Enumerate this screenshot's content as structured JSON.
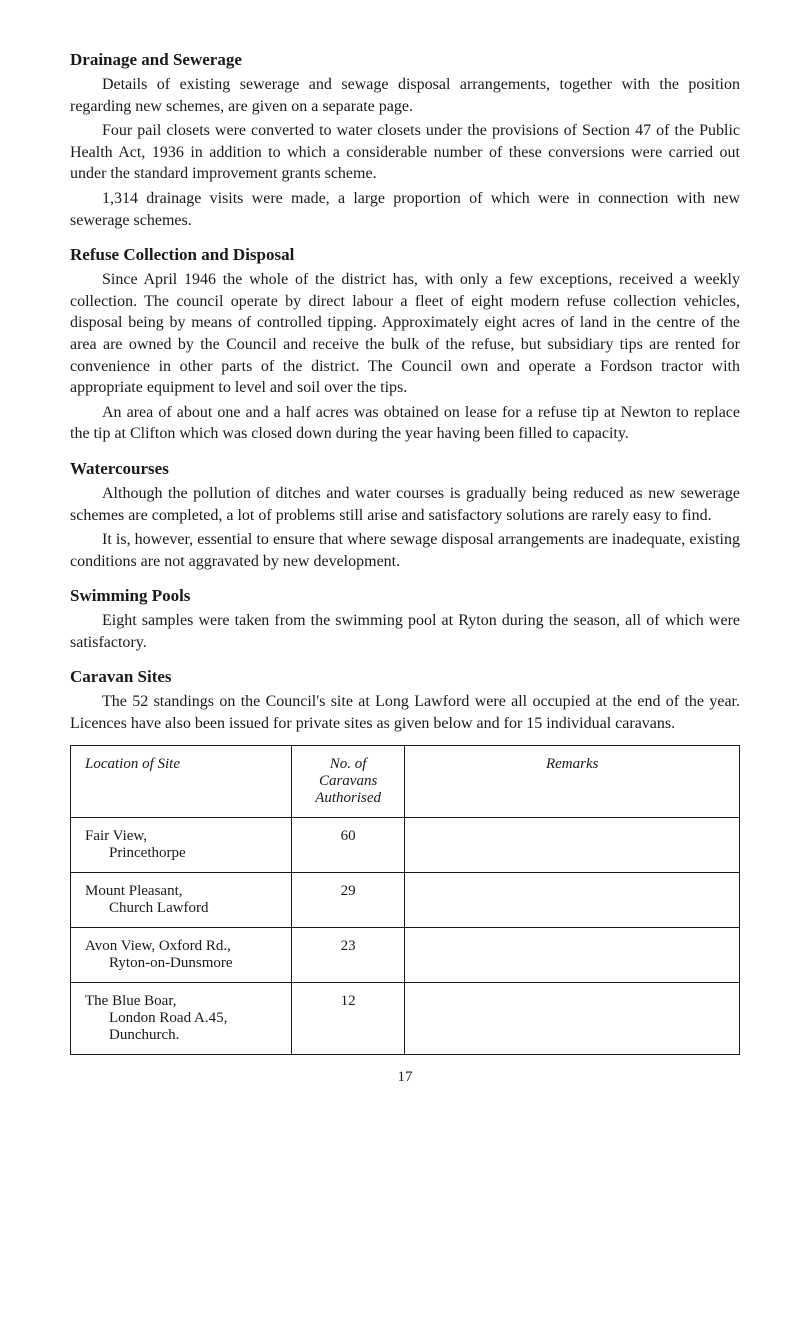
{
  "sections": {
    "drainage": {
      "heading": "Drainage and Sewerage",
      "p1": "Details of existing sewerage and sewage disposal arrangements, together with the position regarding new schemes, are given on a separate page.",
      "p2": "Four pail closets were converted to water closets under the provisions of Section 47 of the Public Health Act, 1936 in addition to which a consider­able number of these conversions were carried out under the standard improvement grants scheme.",
      "p3": "1,314 drainage visits were made, a large proportion of which were in connection with new sewerage schemes."
    },
    "refuse": {
      "heading": "Refuse Collection and Disposal",
      "p1": "Since April 1946 the whole of the district has, with only a few exceptions, received a weekly collection. The council operate by direct labour a fleet of eight modern refuse collection vehicles, disposal being by means of controlled tipping. Approximately eight acres of land in the centre of the area are owned by the Council and receive the bulk of the refuse, but subsidiary tips are rented for convenience in other parts of the district. The Council own and operate a Fordson tractor with appropriate equipment to level and soil over the tips.",
      "p2": "An area of about one and a half acres was obtained on lease for a refuse tip at Newton to replace the tip at Clifton which was closed down during the year having been filled to capacity."
    },
    "watercourses": {
      "heading": "Watercourses",
      "p1": "Although the pollution of ditches and water courses is gradually being reduced as new sewerage schemes are completed, a lot of problems still arise and satisfactory solutions are rarely easy to find.",
      "p2": "It is, however, essential to ensure that where sewage disposal arrange­ments are inadequate, existing conditions are not aggravated by new development."
    },
    "swimming": {
      "heading": "Swimming Pools",
      "p1": "Eight samples were taken from the swimming pool at Ryton during the season, all of which were satisfactory."
    },
    "caravan": {
      "heading": "Caravan Sites",
      "p1": "The 52 standings on the Council's site at Long Lawford were all occupied at the end of the year. Licences have also been issued for private sites as given below and for 15 individual caravans."
    }
  },
  "table": {
    "headers": {
      "location": "Location of Site",
      "caravans_line1": "No. of",
      "caravans_line2": "Caravans",
      "caravans_line3": "Authorised",
      "remarks": "Remarks"
    },
    "rows": [
      {
        "location_line1": "Fair View,",
        "location_line2": "Princethorpe",
        "caravans": "60",
        "remarks": ""
      },
      {
        "location_line1": "Mount Pleasant,",
        "location_line2": "Church Lawford",
        "caravans": "29",
        "remarks": ""
      },
      {
        "location_line1": "Avon View, Oxford Rd.,",
        "location_line2": "Ryton-on-Dunsmore",
        "caravans": "23",
        "remarks": ""
      },
      {
        "location_line1": "The Blue Boar,",
        "location_line2": "London Road A.45,",
        "location_line3": "Dunchurch.",
        "caravans": "12",
        "remarks": ""
      }
    ]
  },
  "page_number": "17"
}
